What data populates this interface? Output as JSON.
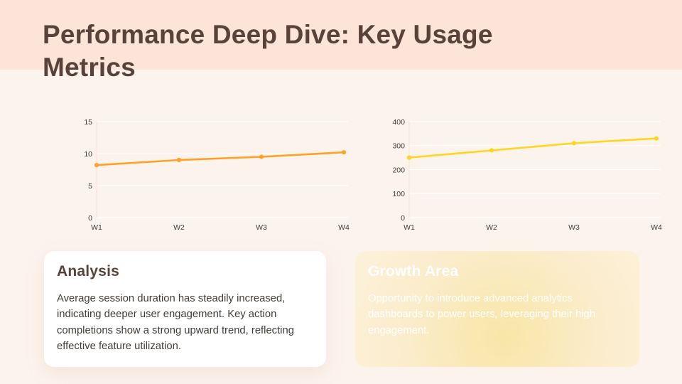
{
  "header": {
    "title": "Performance Deep Dive: Key Usage Metrics"
  },
  "colors": {
    "header_band": "#fce4d8",
    "background": "#fdf3ed",
    "title_text": "#5a423c",
    "chart_left_line": "#ffa126",
    "chart_right_line": "#ffd61f",
    "gridline": "rgba(255,255,255,0.9)",
    "axis_line": "#f6e2d7",
    "tick_label": "#3f3a36",
    "analysis_card_bg": "#ffffff",
    "growth_card_text": "#ffffff"
  },
  "chart_data": [
    {
      "type": "line",
      "categories": [
        "W1",
        "W2",
        "W3",
        "W4"
      ],
      "values": [
        8.2,
        9.0,
        9.5,
        10.2
      ],
      "ylim": [
        0,
        15
      ],
      "yticks": [
        0,
        5,
        10,
        15
      ],
      "color": "#ffa126",
      "grid": true,
      "legend": false,
      "markers": true
    },
    {
      "type": "line",
      "categories": [
        "W1",
        "W2",
        "W3",
        "W4"
      ],
      "values": [
        250,
        280,
        310,
        330
      ],
      "ylim": [
        0,
        400
      ],
      "yticks": [
        0,
        100,
        200,
        300,
        400
      ],
      "color": "#ffd61f",
      "grid": true,
      "legend": false,
      "markers": true
    }
  ],
  "cards": {
    "analysis": {
      "heading": "Analysis",
      "body": "Average session duration has steadily increased, indicating deeper user engagement. Key action completions show a strong upward trend, reflecting effective feature utilization."
    },
    "growth": {
      "heading": "Growth Area",
      "body": "Opportunity to introduce advanced analytics dashboards to power users, leveraging their high engagement."
    }
  }
}
